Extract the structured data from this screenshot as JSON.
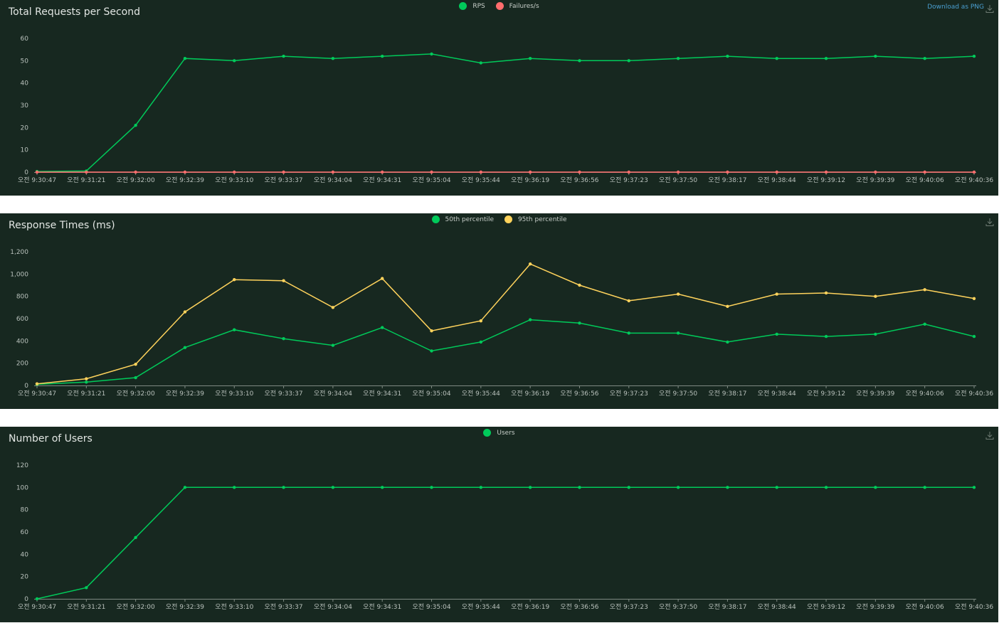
{
  "download_label": "Download as PNG",
  "colors": {
    "background": "#172820",
    "green": "#00ca5a",
    "red": "#ff6d6d",
    "yellow": "#ffd35c"
  },
  "chart_data": [
    {
      "type": "line",
      "title": "Total Requests per Second",
      "x": [
        "오전 9:30:47",
        "오전 9:31:21",
        "오전 9:32:00",
        "오전 9:32:39",
        "오전 9:33:10",
        "오전 9:33:37",
        "오전 9:34:04",
        "오전 9:34:31",
        "오전 9:35:04",
        "오전 9:35:44",
        "오전 9:36:19",
        "오전 9:36:56",
        "오전 9:37:23",
        "오전 9:37:50",
        "오전 9:38:17",
        "오전 9:38:44",
        "오전 9:39:12",
        "오전 9:39:39",
        "오전 9:40:06",
        "오전 9:40:36"
      ],
      "yticks": [
        "0",
        "10",
        "20",
        "30",
        "40",
        "50",
        "60"
      ],
      "ylim": [
        0,
        60
      ],
      "legend": "top-center",
      "series": [
        {
          "name": "RPS",
          "color": "#00ca5a",
          "values": [
            0.3,
            0.5,
            21,
            51,
            50,
            52,
            51,
            52,
            53,
            49,
            51,
            50,
            50,
            51,
            52,
            51,
            51,
            52,
            51,
            52
          ]
        },
        {
          "name": "Failures/s",
          "color": "#ff6d6d",
          "values": [
            0,
            0,
            0,
            0,
            0,
            0,
            0,
            0,
            0,
            0,
            0,
            0,
            0,
            0,
            0,
            0,
            0,
            0,
            0,
            0
          ]
        }
      ]
    },
    {
      "type": "line",
      "title": "Response Times (ms)",
      "x": [
        "오전 9:30:47",
        "오전 9:31:21",
        "오전 9:32:00",
        "오전 9:32:39",
        "오전 9:33:10",
        "오전 9:33:37",
        "오전 9:34:04",
        "오전 9:34:31",
        "오전 9:35:04",
        "오전 9:35:44",
        "오전 9:36:19",
        "오전 9:36:56",
        "오전 9:37:23",
        "오전 9:37:50",
        "오전 9:38:17",
        "오전 9:38:44",
        "오전 9:39:12",
        "오전 9:39:39",
        "오전 9:40:06",
        "오전 9:40:36"
      ],
      "yticks": [
        "0",
        "200",
        "400",
        "600",
        "800",
        "1,000",
        "1,200"
      ],
      "ylim": [
        0,
        1200
      ],
      "legend": "top-center",
      "series": [
        {
          "name": "50th percentile",
          "color": "#00ca5a",
          "values": [
            10,
            30,
            70,
            340,
            500,
            420,
            360,
            520,
            310,
            390,
            590,
            560,
            470,
            470,
            390,
            460,
            440,
            460,
            550,
            440
          ]
        },
        {
          "name": "95th percentile",
          "color": "#ffd35c",
          "values": [
            15,
            60,
            190,
            660,
            950,
            940,
            700,
            960,
            490,
            580,
            1090,
            900,
            760,
            820,
            710,
            820,
            830,
            800,
            860,
            780
          ]
        }
      ]
    },
    {
      "type": "line",
      "title": "Number of Users",
      "x": [
        "오전 9:30:47",
        "오전 9:31:21",
        "오전 9:32:00",
        "오전 9:32:39",
        "오전 9:33:10",
        "오전 9:33:37",
        "오전 9:34:04",
        "오전 9:34:31",
        "오전 9:35:04",
        "오전 9:35:44",
        "오전 9:36:19",
        "오전 9:36:56",
        "오전 9:37:23",
        "오전 9:37:50",
        "오전 9:38:17",
        "오전 9:38:44",
        "오전 9:39:12",
        "오전 9:39:39",
        "오전 9:40:06",
        "오전 9:40:36"
      ],
      "yticks": [
        "0",
        "20",
        "40",
        "60",
        "80",
        "100",
        "120"
      ],
      "ylim": [
        0,
        120
      ],
      "legend": "top-center",
      "series": [
        {
          "name": "Users",
          "color": "#00ca5a",
          "values": [
            0,
            10,
            55,
            100,
            100,
            100,
            100,
            100,
            100,
            100,
            100,
            100,
            100,
            100,
            100,
            100,
            100,
            100,
            100,
            100
          ]
        }
      ]
    }
  ]
}
